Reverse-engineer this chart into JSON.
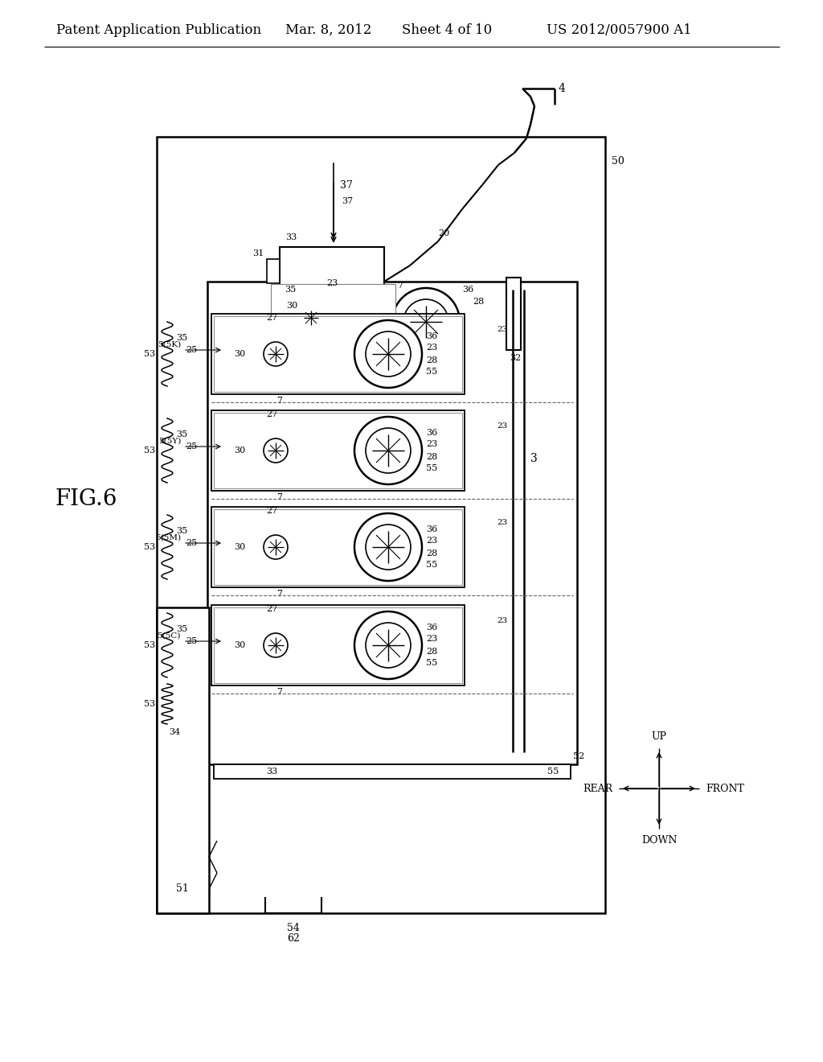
{
  "bg_color": "#ffffff",
  "line_color": "#000000",
  "header_text": "Patent Application Publication",
  "header_date": "Mar. 8, 2012",
  "header_sheet": "Sheet 4 of 10",
  "header_patent": "US 2012/0057900 A1",
  "fig_label": "FIG.6",
  "header_fontsize": 12,
  "fig_fontsize": 20
}
